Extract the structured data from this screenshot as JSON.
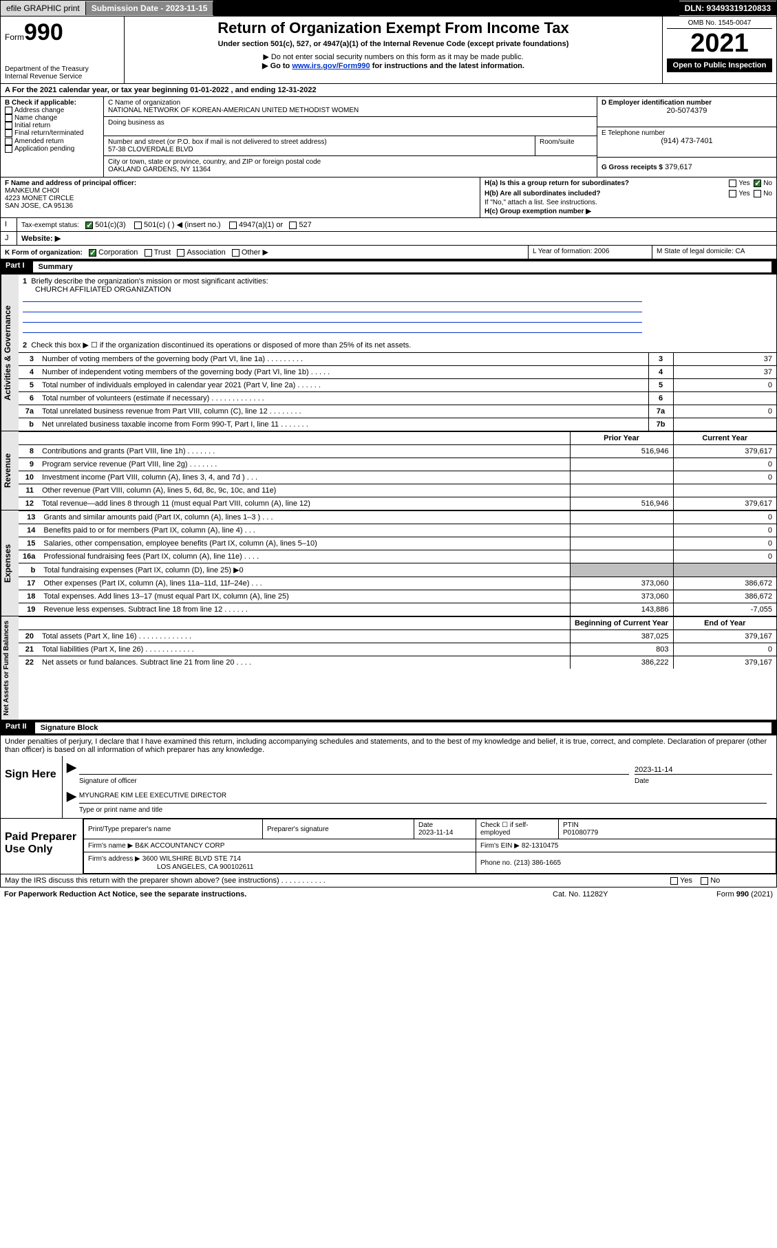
{
  "toolbar": {
    "efile": "efile GRAPHIC print",
    "submission_label": "Submission Date - 2023-11-15",
    "dln": "DLN: 93493319120833"
  },
  "header": {
    "form_prefix": "Form",
    "form_num": "990",
    "dept": "Department of the Treasury",
    "irs": "Internal Revenue Service",
    "title": "Return of Organization Exempt From Income Tax",
    "subtitle": "Under section 501(c), 527, or 4947(a)(1) of the Internal Revenue Code (except private foundations)",
    "warn1": "▶ Do not enter social security numbers on this form as it may be made public.",
    "warn2_pre": "▶ Go to ",
    "warn2_link": "www.irs.gov/Form990",
    "warn2_post": " for instructions and the latest information.",
    "omb": "OMB No. 1545-0047",
    "year": "2021",
    "open": "Open to Public Inspection"
  },
  "A": {
    "line": "For the 2021 calendar year, or tax year beginning 01-01-2022   , and ending 12-31-2022"
  },
  "B": {
    "label": "B Check if applicable:",
    "opts": [
      "Address change",
      "Name change",
      "Initial return",
      "Final return/terminated",
      "Amended return",
      "Application pending"
    ]
  },
  "C": {
    "name_label": "C Name of organization",
    "name": "NATIONAL NETWORK OF KOREAN-AMERICAN UNITED METHODIST WOMEN",
    "dba_label": "Doing business as",
    "street_label": "Number and street (or P.O. box if mail is not delivered to street address)",
    "room_label": "Room/suite",
    "street": "57-38 CLOVERDALE BLVD",
    "city_label": "City or town, state or province, country, and ZIP or foreign postal code",
    "city": "OAKLAND GARDENS, NY  11364"
  },
  "D": {
    "label": "D Employer identification number",
    "val": "20-5074379"
  },
  "E": {
    "label": "E Telephone number",
    "val": "(914) 473-7401"
  },
  "G": {
    "label": "G Gross receipts $",
    "val": "379,617"
  },
  "F": {
    "label": "F  Name and address of principal officer:",
    "name": "MANKEUM CHOI",
    "addr1": "4223 MONET CIRCLE",
    "addr2": "SAN JOSE, CA  95136"
  },
  "H": {
    "a": "H(a)  Is this a group return for subordinates?",
    "b": "H(b)  Are all subordinates included?",
    "note": "If \"No,\" attach a list. See instructions.",
    "c": "H(c)  Group exemption number ▶",
    "yes": "Yes",
    "no": "No"
  },
  "I": {
    "label": "Tax-exempt status:",
    "opts": [
      "501(c)(3)",
      "501(c) (  ) ◀ (insert no.)",
      "4947(a)(1) or",
      "527"
    ]
  },
  "J": {
    "label": "Website: ▶"
  },
  "K": {
    "label": "K Form of organization:",
    "opts": [
      "Corporation",
      "Trust",
      "Association",
      "Other ▶"
    ]
  },
  "L": {
    "label": "L Year of formation: 2006"
  },
  "M": {
    "label": "M State of legal domicile: CA"
  },
  "part1": {
    "tag": "Part I",
    "title": "Summary",
    "q1_label": "Briefly describe the organization's mission or most significant activities:",
    "q1_val": "CHURCH AFFILIATED ORGANIZATION",
    "q2": "Check this box ▶ ☐  if the organization discontinued its operations or disposed of more than 25% of its net assets.",
    "rowsA": [
      {
        "n": "3",
        "d": "Number of voting members of the governing body (Part VI, line 1a)  .   .   .   .   .   .   .   .   .",
        "b": "3",
        "v": "37"
      },
      {
        "n": "4",
        "d": "Number of independent voting members of the governing body (Part VI, line 1b)  .   .   .   .   .",
        "b": "4",
        "v": "37"
      },
      {
        "n": "5",
        "d": "Total number of individuals employed in calendar year 2021 (Part V, line 2a)  .   .   .   .   .   .",
        "b": "5",
        "v": "0"
      },
      {
        "n": "6",
        "d": "Total number of volunteers (estimate if necessary)  .   .   .   .   .   .   .   .   .   .   .   .   .",
        "b": "6",
        "v": ""
      },
      {
        "n": "7a",
        "d": "Total unrelated business revenue from Part VIII, column (C), line 12  .   .   .   .   .   .   .   .",
        "b": "7a",
        "v": "0"
      },
      {
        "n": "b",
        "d": "Net unrelated business taxable income from Form 990-T, Part I, line 11  .   .   .   .   .   .   .",
        "b": "7b",
        "v": ""
      }
    ],
    "hdr_prior": "Prior Year",
    "hdr_curr": "Current Year",
    "rev": [
      {
        "n": "8",
        "d": "Contributions and grants (Part VIII, line 1h)  .   .   .   .   .   .   .",
        "p": "516,946",
        "c": "379,617"
      },
      {
        "n": "9",
        "d": "Program service revenue (Part VIII, line 2g)  .   .   .   .   .   .   .",
        "p": "",
        "c": "0"
      },
      {
        "n": "10",
        "d": "Investment income (Part VIII, column (A), lines 3, 4, and 7d )  .   .   .",
        "p": "",
        "c": "0"
      },
      {
        "n": "11",
        "d": "Other revenue (Part VIII, column (A), lines 5, 6d, 8c, 9c, 10c, and 11e)",
        "p": "",
        "c": ""
      },
      {
        "n": "12",
        "d": "Total revenue—add lines 8 through 11 (must equal Part VIII, column (A), line 12)",
        "p": "516,946",
        "c": "379,617"
      }
    ],
    "exp": [
      {
        "n": "13",
        "d": "Grants and similar amounts paid (Part IX, column (A), lines 1–3 )  .   .   .",
        "p": "",
        "c": "0"
      },
      {
        "n": "14",
        "d": "Benefits paid to or for members (Part IX, column (A), line 4)  .   .   .",
        "p": "",
        "c": "0"
      },
      {
        "n": "15",
        "d": "Salaries, other compensation, employee benefits (Part IX, column (A), lines 5–10)",
        "p": "",
        "c": "0"
      },
      {
        "n": "16a",
        "d": "Professional fundraising fees (Part IX, column (A), line 11e)  .   .   .   .",
        "p": "",
        "c": "0"
      },
      {
        "n": "b",
        "d": "Total fundraising expenses (Part IX, column (D), line 25) ▶0",
        "p": "shade",
        "c": "shade"
      },
      {
        "n": "17",
        "d": "Other expenses (Part IX, column (A), lines 11a–11d, 11f–24e)  .   .   .",
        "p": "373,060",
        "c": "386,672"
      },
      {
        "n": "18",
        "d": "Total expenses. Add lines 13–17 (must equal Part IX, column (A), line 25)",
        "p": "373,060",
        "c": "386,672"
      },
      {
        "n": "19",
        "d": "Revenue less expenses. Subtract line 18 from line 12  .   .   .   .   .   .",
        "p": "143,886",
        "c": "-7,055"
      }
    ],
    "hdr_beg": "Beginning of Current Year",
    "hdr_end": "End of Year",
    "net": [
      {
        "n": "20",
        "d": "Total assets (Part X, line 16)  .   .   .   .   .   .   .   .   .   .   .   .   .",
        "p": "387,025",
        "c": "379,167"
      },
      {
        "n": "21",
        "d": "Total liabilities (Part X, line 26)  .   .   .   .   .   .   .   .   .   .   .   .",
        "p": "803",
        "c": "0"
      },
      {
        "n": "22",
        "d": "Net assets or fund balances. Subtract line 21 from line 20  .   .   .   .",
        "p": "386,222",
        "c": "379,167"
      }
    ],
    "side_gov": "Activities & Governance",
    "side_rev": "Revenue",
    "side_exp": "Expenses",
    "side_net": "Net Assets or Fund Balances"
  },
  "part2": {
    "tag": "Part II",
    "title": "Signature Block",
    "decl": "Under penalties of perjury, I declare that I have examined this return, including accompanying schedules and statements, and to the best of my knowledge and belief, it is true, correct, and complete. Declaration of preparer (other than officer) is based on all information of which preparer has any knowledge.",
    "sign_here": "Sign Here",
    "sig_off": "Signature of officer",
    "sig_date": "Date",
    "sig_date_val": "2023-11-14",
    "officer": "MYUNGRAE KIM LEE  EXECUTIVE DIRECTOR",
    "officer_lab": "Type or print name and title",
    "paid": "Paid Preparer Use Only",
    "p_name_lab": "Print/Type preparer's name",
    "p_sig_lab": "Preparer's signature",
    "p_date_lab": "Date",
    "p_date": "2023-11-14",
    "p_check": "Check ☐ if self-employed",
    "p_ptin_lab": "PTIN",
    "p_ptin": "P01080779",
    "firm_name_lab": "Firm's name   ▶",
    "firm_name": "B&K ACCOUNTANCY CORP",
    "firm_ein_lab": "Firm's EIN ▶",
    "firm_ein": "82-1310475",
    "firm_addr_lab": "Firm's address ▶",
    "firm_addr1": "3600 WILSHIRE BLVD STE 714",
    "firm_addr2": "LOS ANGELES, CA  900102611",
    "phone_lab": "Phone no.",
    "phone": "(213) 386-1665",
    "may": "May the IRS discuss this return with the preparer shown above? (see instructions)   .   .   .   .   .   .   .   .   .   .   .",
    "yes": "Yes",
    "no": "No"
  },
  "footer": {
    "pra": "For Paperwork Reduction Act Notice, see the separate instructions.",
    "cat": "Cat. No. 11282Y",
    "form": "Form 990 (2021)"
  },
  "colors": {
    "toolbar_bg": "#d9d9d9",
    "btn_bg": "#888888",
    "link": "#0033cc",
    "shade": "#bfbfbf",
    "side": "#e6e6e6",
    "check": "#2e7d32"
  }
}
